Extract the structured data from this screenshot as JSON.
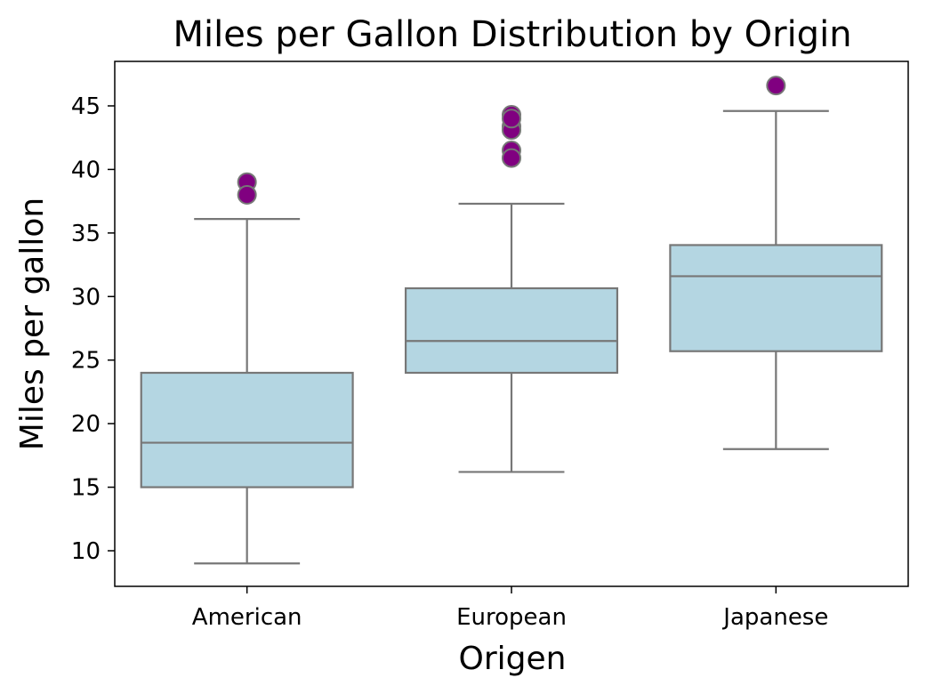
{
  "chart_data": {
    "type": "box",
    "title": "Miles per Gallon Distribution by Origin",
    "xlabel": "Origen",
    "ylabel": "Miles per gallon",
    "categories": [
      "American",
      "European",
      "Japanese"
    ],
    "ylim": [
      7.2,
      48.5
    ],
    "yticks": [
      10,
      15,
      20,
      25,
      30,
      35,
      40,
      45
    ],
    "grid": false,
    "legend": "none",
    "box_color": "#b4d6e2",
    "line_color": "#777777",
    "outlier_color": "#800080",
    "boxes": [
      {
        "category": "American",
        "whisker_low": 9.0,
        "q1": 15.0,
        "median": 18.5,
        "q3": 24.0,
        "whisker_high": 36.1,
        "outliers": [
          39.0,
          38.0
        ]
      },
      {
        "category": "European",
        "whisker_low": 16.2,
        "q1": 24.0,
        "median": 26.5,
        "q3": 30.65,
        "whisker_high": 37.3,
        "outliers": [
          44.3,
          43.4,
          43.1,
          44.0,
          41.5,
          40.9
        ]
      },
      {
        "category": "Japanese",
        "whisker_low": 18.0,
        "q1": 25.7,
        "median": 31.6,
        "q3": 34.05,
        "whisker_high": 44.6,
        "outliers": [
          46.6
        ]
      }
    ]
  }
}
